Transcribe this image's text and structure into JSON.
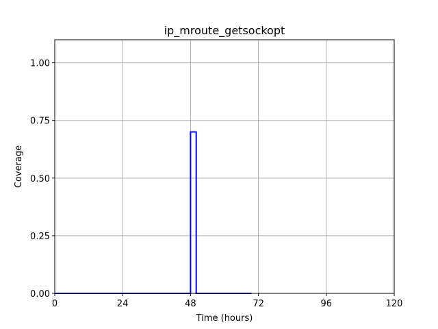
{
  "chart_data": {
    "type": "line",
    "title": "ip_mroute_getsockopt",
    "xlabel": "Time (hours)",
    "ylabel": "Coverage",
    "xlim": [
      0,
      120
    ],
    "ylim": [
      0,
      1.1
    ],
    "x_ticks": [
      0,
      24,
      48,
      72,
      96,
      120
    ],
    "y_ticks": [
      0.0,
      0.25,
      0.5,
      0.75,
      1.0
    ],
    "x_tick_labels": [
      "0",
      "24",
      "48",
      "72",
      "96",
      "120"
    ],
    "y_tick_labels": [
      "0.00",
      "0.25",
      "0.50",
      "0.75",
      "1.00"
    ],
    "grid": true,
    "series": [
      {
        "color": "#0000ff",
        "x": [
          0,
          48,
          48,
          48.7,
          48.7,
          50,
          50,
          69.5
        ],
        "y": [
          0,
          0,
          0.7,
          0.7,
          0.7,
          0.7,
          0,
          0
        ]
      }
    ]
  }
}
